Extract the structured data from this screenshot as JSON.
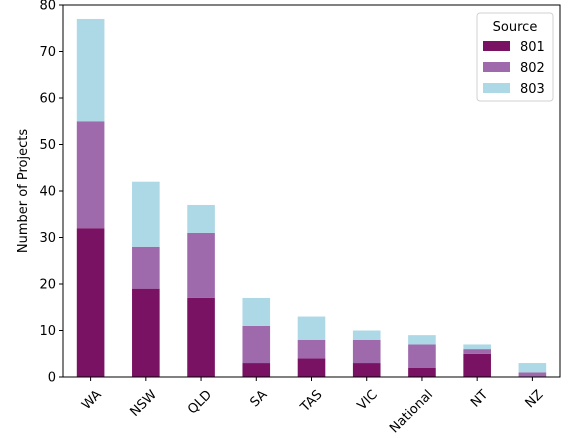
{
  "chart_data": {
    "type": "bar",
    "stacked": true,
    "title": "",
    "xlabel": "",
    "ylabel": "Number of Projects",
    "ylim": [
      0,
      80
    ],
    "yticks": [
      0,
      10,
      20,
      30,
      40,
      50,
      60,
      70,
      80
    ],
    "grid": false,
    "categories": [
      "WA",
      "NSW",
      "QLD",
      "SA",
      "TAS",
      "VIC",
      "National",
      "NT",
      "NZ"
    ],
    "series": [
      {
        "name": "801",
        "color": "#7a1264",
        "values": [
          32,
          19,
          17,
          3,
          4,
          3,
          2,
          5,
          0
        ]
      },
      {
        "name": "802",
        "color": "#9e6aac",
        "values": [
          23,
          9,
          14,
          8,
          4,
          5,
          5,
          1,
          1
        ]
      },
      {
        "name": "803",
        "color": "#add8e6",
        "values": [
          22,
          14,
          6,
          6,
          5,
          2,
          2,
          1,
          2
        ]
      }
    ],
    "legend": {
      "title": "Source",
      "position": "top-right"
    }
  }
}
